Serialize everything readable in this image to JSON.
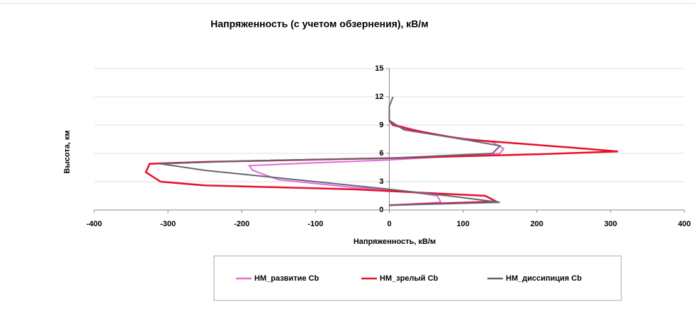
{
  "chart_data": {
    "type": "line",
    "title": "Напряженность (с учетом обзернения), кВ/м",
    "x_label": "Напряженность, кВ/м",
    "y_label": "Высота, км",
    "xlim": [
      -400,
      400
    ],
    "xticks": [
      -400,
      -300,
      -200,
      -100,
      0,
      100,
      200,
      300,
      400
    ],
    "ylim": [
      0,
      15
    ],
    "yticks": [
      0,
      3,
      6,
      9,
      12,
      15
    ],
    "grid": true,
    "legend": "bottom",
    "series": [
      {
        "name": "НМ_развитие Cb",
        "color": "#e66ad8",
        "x": [
          0,
          70,
          65,
          20,
          -50,
          -150,
          -185,
          -190,
          -100,
          0,
          150,
          155,
          140,
          60,
          10,
          0
        ],
        "values": [
          0.5,
          0.8,
          1.5,
          2.0,
          2.4,
          3.2,
          4.2,
          4.7,
          5.0,
          5.3,
          6.0,
          6.5,
          7.2,
          8.0,
          9.0,
          9.5
        ]
      },
      {
        "name": "НМ_зрелый Cb",
        "color": "#e8102a",
        "x": [
          0,
          145,
          130,
          -50,
          -250,
          -310,
          -330,
          -325,
          -250,
          0,
          200,
          310,
          250,
          100,
          30,
          5,
          0
        ],
        "values": [
          0.5,
          0.9,
          1.5,
          2.2,
          2.6,
          3.0,
          4.0,
          4.9,
          5.1,
          5.5,
          5.9,
          6.2,
          6.6,
          7.5,
          8.5,
          9.0,
          9.5
        ]
      },
      {
        "name": "НМ_диссипиция Cb",
        "color": "#666677",
        "x": [
          0,
          150,
          80,
          0,
          -100,
          -250,
          -310,
          -200,
          0,
          140,
          150,
          100,
          20,
          0,
          0,
          5
        ],
        "values": [
          0.5,
          0.8,
          1.5,
          2.2,
          3.0,
          4.2,
          4.9,
          5.2,
          5.5,
          6.0,
          6.8,
          7.5,
          8.5,
          9.5,
          11.0,
          12.0
        ]
      }
    ]
  }
}
